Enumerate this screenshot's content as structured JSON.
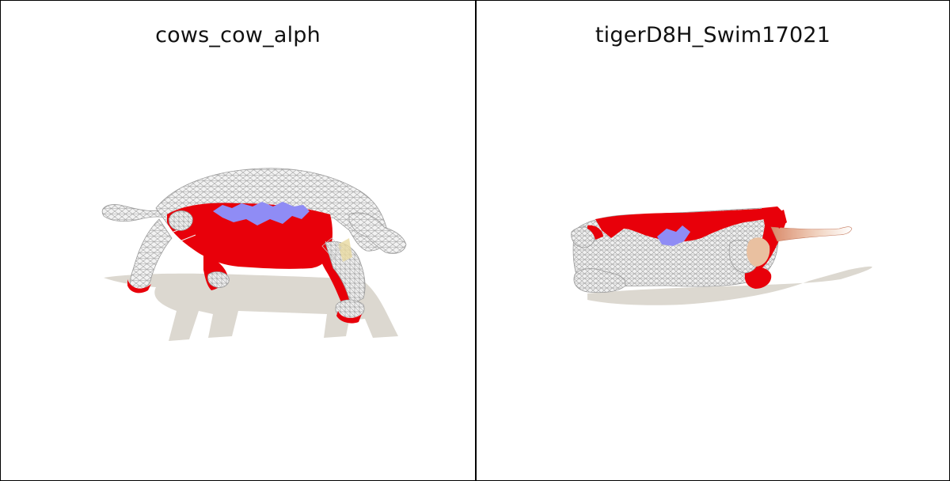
{
  "panels": [
    {
      "title": "cows_cow_alph",
      "subject": "cow"
    },
    {
      "title": "tigerD8H_Swim17021",
      "subject": "tiger"
    }
  ],
  "colors": {
    "mesh_white": "#f1f1f1",
    "wireframe": "#9a9a9a",
    "correspondence_red": "#e8000a",
    "correspondence_blue": "#8f8cf5",
    "shadow": "#dcd8d0",
    "border": "#000000"
  }
}
